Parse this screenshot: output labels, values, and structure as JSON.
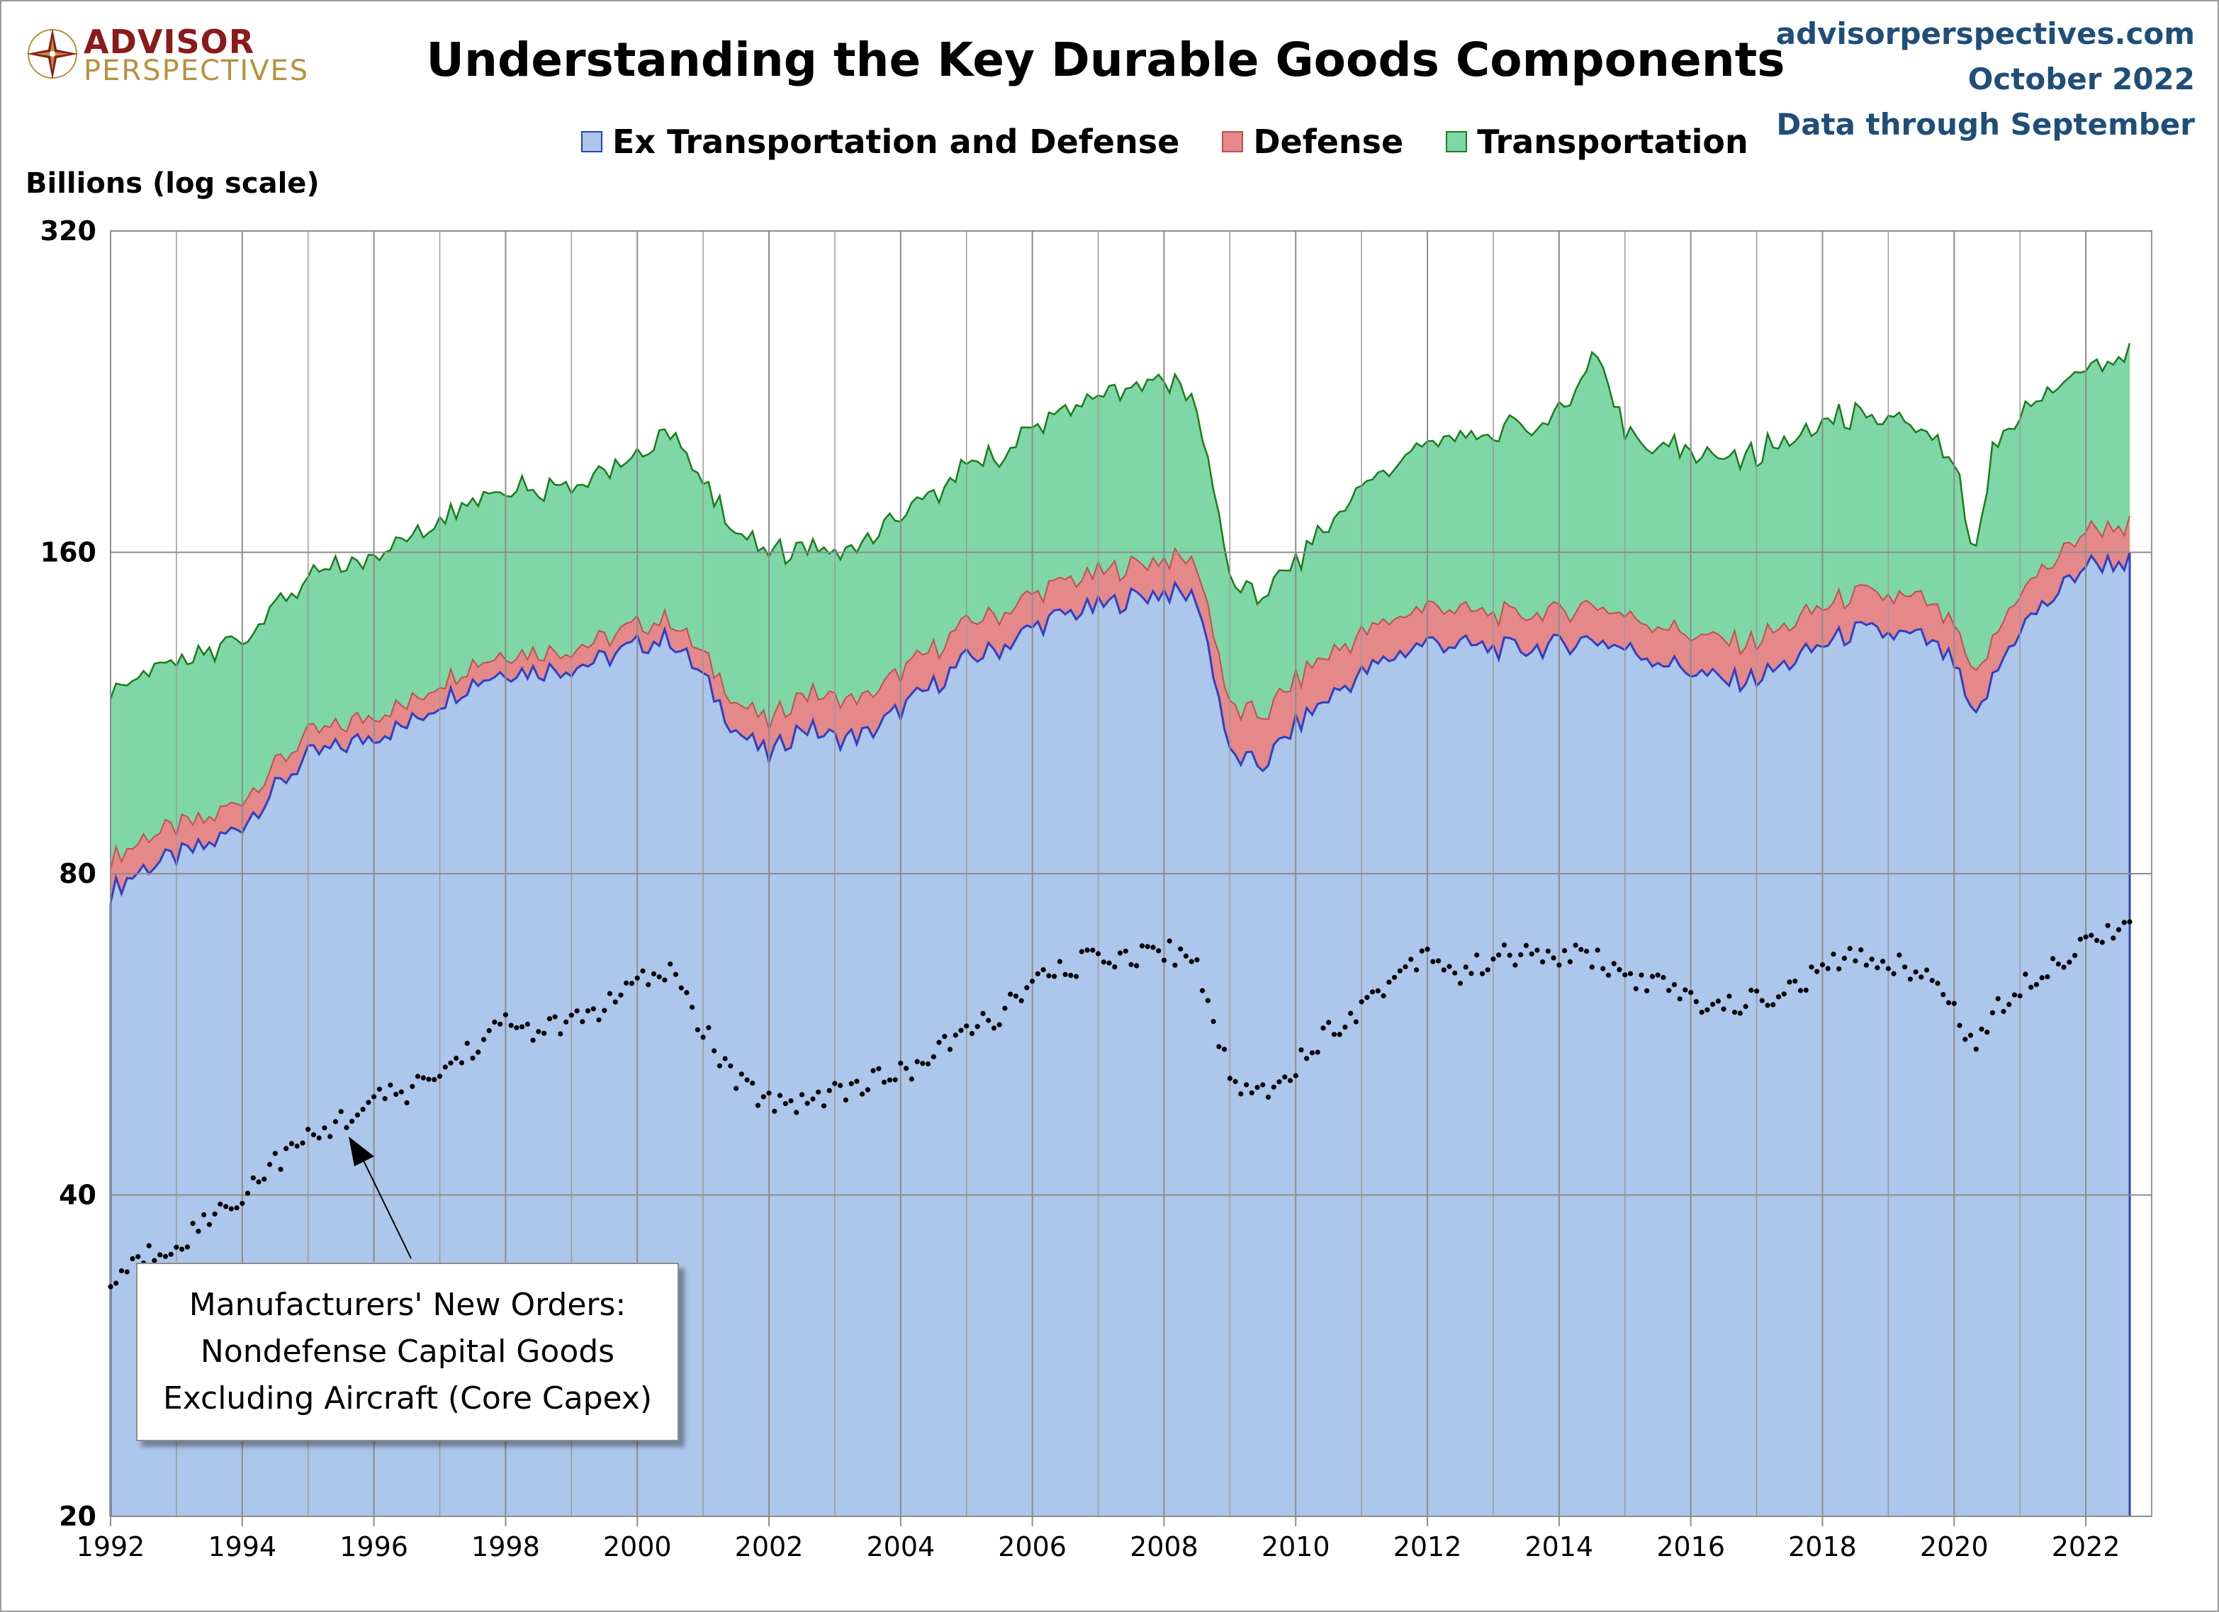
{
  "logo": {
    "line1": "ADVISOR",
    "line2": "PERSPECTIVES"
  },
  "header": {
    "title": "Understanding the Key Durable Goods Components",
    "site": "advisorperspectives.com",
    "date": "October 2022",
    "data_note": "Data through September"
  },
  "legend": [
    {
      "label": "Ex Transportation and Defense",
      "fill": "#adc6eb",
      "stroke": "#2f3fc4"
    },
    {
      "label": "Defense",
      "fill": "#e5888a",
      "stroke": "#c0504d"
    },
    {
      "label": "Transportation",
      "fill": "#7fd7a7",
      "stroke": "#1a7d1a"
    }
  ],
  "annotation": {
    "lines": [
      "Manufacturers' New Orders:",
      "Nondefense Capital Goods",
      "Excluding Aircraft (Core Capex)"
    ]
  },
  "chart_data": {
    "type": "area",
    "title": "Understanding the Key Durable Goods Components",
    "ylabel": "Billions (log scale)",
    "yscale": "log",
    "ylim": [
      20,
      320
    ],
    "yticks": [
      20,
      40,
      80,
      160,
      320
    ],
    "xlim": [
      1992,
      2023
    ],
    "xticks": [
      1992,
      1994,
      1996,
      1998,
      2000,
      2002,
      2004,
      2006,
      2008,
      2010,
      2012,
      2014,
      2016,
      2018,
      2020,
      2022
    ],
    "grid": true,
    "stacked": true,
    "legend_position": "top-center",
    "series": [
      {
        "name": "Ex Transportation and Defense",
        "kind": "stacked-area",
        "x": [
          1992.0,
          1992.5,
          1993.0,
          1993.5,
          1994.0,
          1994.5,
          1995.0,
          1995.5,
          1996.0,
          1996.5,
          1997.0,
          1997.5,
          1998.0,
          1998.5,
          1999.0,
          1999.5,
          2000.0,
          2000.5,
          2001.0,
          2001.5,
          2002.0,
          2002.5,
          2003.0,
          2003.5,
          2004.0,
          2004.5,
          2005.0,
          2005.5,
          2006.0,
          2006.5,
          2007.0,
          2007.5,
          2008.0,
          2008.5,
          2009.0,
          2009.5,
          2010.0,
          2010.5,
          2011.0,
          2011.5,
          2012.0,
          2012.5,
          2013.0,
          2013.5,
          2014.0,
          2014.5,
          2015.0,
          2015.5,
          2016.0,
          2016.5,
          2017.0,
          2017.5,
          2018.0,
          2018.5,
          2019.0,
          2019.5,
          2020.0,
          2020.3,
          2020.6,
          2021.0,
          2021.5,
          2022.0,
          2022.7
        ],
        "values": [
          77,
          81,
          83,
          85,
          89,
          96,
          103,
          105,
          108,
          110,
          116,
          121,
          124,
          124,
          125,
          127,
          131,
          133,
          122,
          109,
          103,
          110,
          107,
          108,
          114,
          120,
          127,
          130,
          136,
          140,
          142,
          145,
          147,
          145,
          103,
          101,
          110,
          117,
          123,
          128,
          132,
          131,
          130,
          130,
          131,
          133,
          130,
          127,
          124,
          121,
          122,
          126,
          131,
          135,
          134,
          133,
          126,
          110,
          122,
          136,
          145,
          156,
          157
        ]
      },
      {
        "name": "Defense",
        "kind": "stacked-area",
        "x": [
          1992.0,
          1993.0,
          1994.0,
          1995.0,
          1996.0,
          1997.0,
          1998.0,
          1999.0,
          2000.0,
          2001.0,
          2002.0,
          2003.0,
          2004.0,
          2005.0,
          2006.0,
          2007.0,
          2008.0,
          2008.5,
          2009.0,
          2010.0,
          2011.0,
          2012.0,
          2013.0,
          2014.0,
          2015.0,
          2016.0,
          2017.0,
          2018.0,
          2019.0,
          2020.0,
          2020.3,
          2021.0,
          2022.0,
          2022.7
        ],
        "values": [
          5.5,
          5.2,
          5.0,
          5.0,
          5.0,
          5.0,
          5.0,
          5.2,
          5.5,
          6.0,
          8.0,
          9.0,
          9.5,
          10.0,
          10.0,
          10.5,
          11.0,
          11.0,
          11.0,
          11.5,
          11.0,
          10.5,
          10.0,
          10.0,
          10.0,
          10.5,
          10.5,
          11.0,
          11.5,
          11.0,
          10.5,
          11.0,
          12.0,
          13.0
        ]
      },
      {
        "name": "Transportation",
        "kind": "stacked-area",
        "x": [
          1992.0,
          1993.0,
          1994.0,
          1995.0,
          1996.0,
          1997.0,
          1998.0,
          1999.0,
          2000.0,
          2000.5,
          2001.0,
          2002.0,
          2003.0,
          2004.0,
          2005.0,
          2006.0,
          2007.0,
          2008.0,
          2008.5,
          2009.0,
          2009.5,
          2010.0,
          2011.0,
          2012.0,
          2013.0,
          2014.0,
          2014.55,
          2015.0,
          2016.0,
          2017.0,
          2018.0,
          2019.0,
          2020.0,
          2020.3,
          2020.6,
          2021.0,
          2022.0,
          2022.7
        ],
        "values": [
          37,
          37,
          39,
          43,
          46,
          52,
          56,
          55,
          60,
          72,
          58,
          48,
          42,
          50,
          54,
          62,
          70,
          76,
          62,
          35,
          32,
          35,
          50,
          60,
          67,
          74,
          100,
          68,
          64,
          65,
          69,
          68,
          58,
          35,
          68,
          69,
          72,
          76
        ]
      },
      {
        "name": "Manufacturers' New Orders: Nondefense Capital Goods Excluding Aircraft (Core Capex)",
        "kind": "dotted-line",
        "x": [
          1992.0,
          1992.5,
          1993.0,
          1993.5,
          1994.0,
          1994.5,
          1995.0,
          1995.5,
          1996.0,
          1996.5,
          1997.0,
          1997.5,
          1998.0,
          1998.5,
          1999.0,
          1999.5,
          2000.0,
          2000.5,
          2001.0,
          2001.5,
          2002.0,
          2002.5,
          2003.0,
          2003.5,
          2004.0,
          2004.5,
          2005.0,
          2005.5,
          2006.0,
          2006.5,
          2007.0,
          2007.5,
          2008.0,
          2008.5,
          2009.0,
          2009.5,
          2010.0,
          2010.5,
          2011.0,
          2011.5,
          2012.0,
          2012.5,
          2013.0,
          2013.5,
          2014.0,
          2014.5,
          2015.0,
          2015.5,
          2016.0,
          2016.5,
          2017.0,
          2017.5,
          2018.0,
          2018.5,
          2019.0,
          2019.5,
          2020.0,
          2020.3,
          2020.6,
          2021.0,
          2021.5,
          2022.0,
          2022.7
        ],
        "values": [
          33,
          35,
          36,
          38,
          40,
          43,
          45,
          47,
          49,
          50,
          52,
          55,
          58,
          57,
          58,
          60,
          63,
          65,
          57,
          51,
          49,
          49,
          50,
          51,
          52,
          54,
          57,
          59,
          63,
          65,
          67,
          67,
          68,
          66,
          51,
          50,
          53,
          57,
          60,
          64,
          68,
          64,
          67,
          67,
          67,
          67,
          64,
          63,
          61,
          60,
          61,
          62,
          65,
          67,
          66,
          65,
          60,
          55,
          59,
          63,
          66,
          69,
          73
        ]
      }
    ]
  }
}
